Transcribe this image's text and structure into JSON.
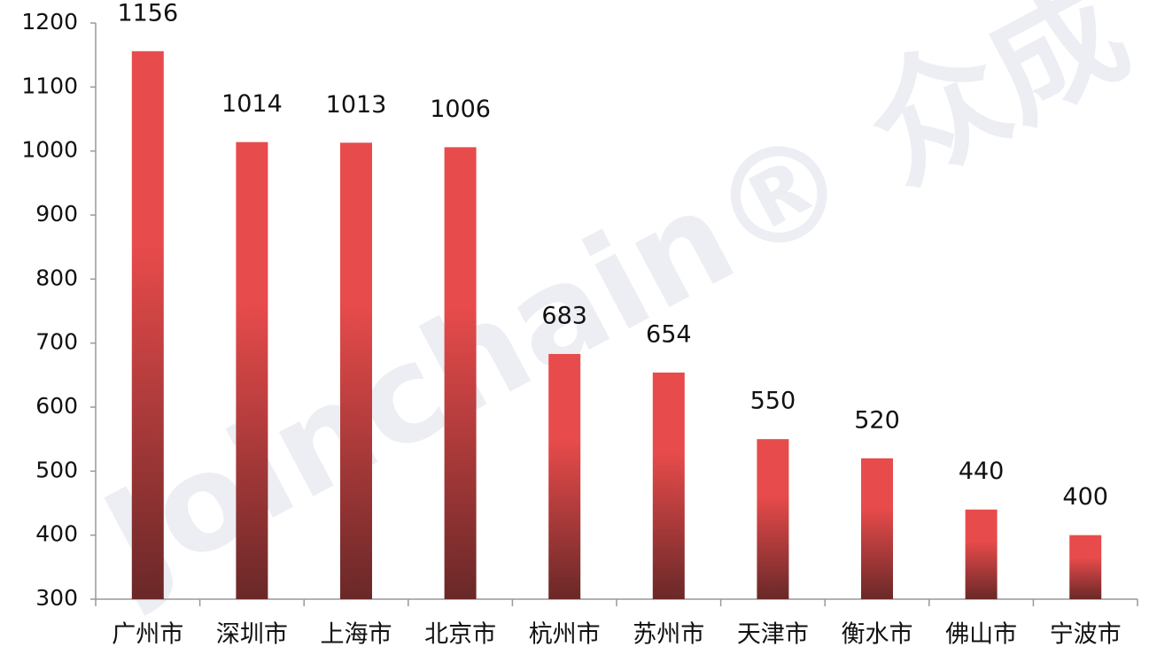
{
  "chart_data": {
    "type": "bar",
    "categories": [
      "广州市",
      "深圳市",
      "上海市",
      "北京市",
      "杭州市",
      "苏州市",
      "天津市",
      "衡水市",
      "佛山市",
      "宁波市"
    ],
    "values": [
      1156,
      1014,
      1013,
      1006,
      683,
      654,
      550,
      520,
      440,
      400
    ],
    "color": "#e84b4b",
    "color_bottom": "#6a2828",
    "ylim": [
      300,
      1200
    ],
    "yticks": [
      300,
      400,
      500,
      600,
      700,
      800,
      900,
      1000,
      1100,
      1200
    ],
    "grid": false,
    "data_labels": true,
    "watermark": "Joinchain® 众成"
  }
}
